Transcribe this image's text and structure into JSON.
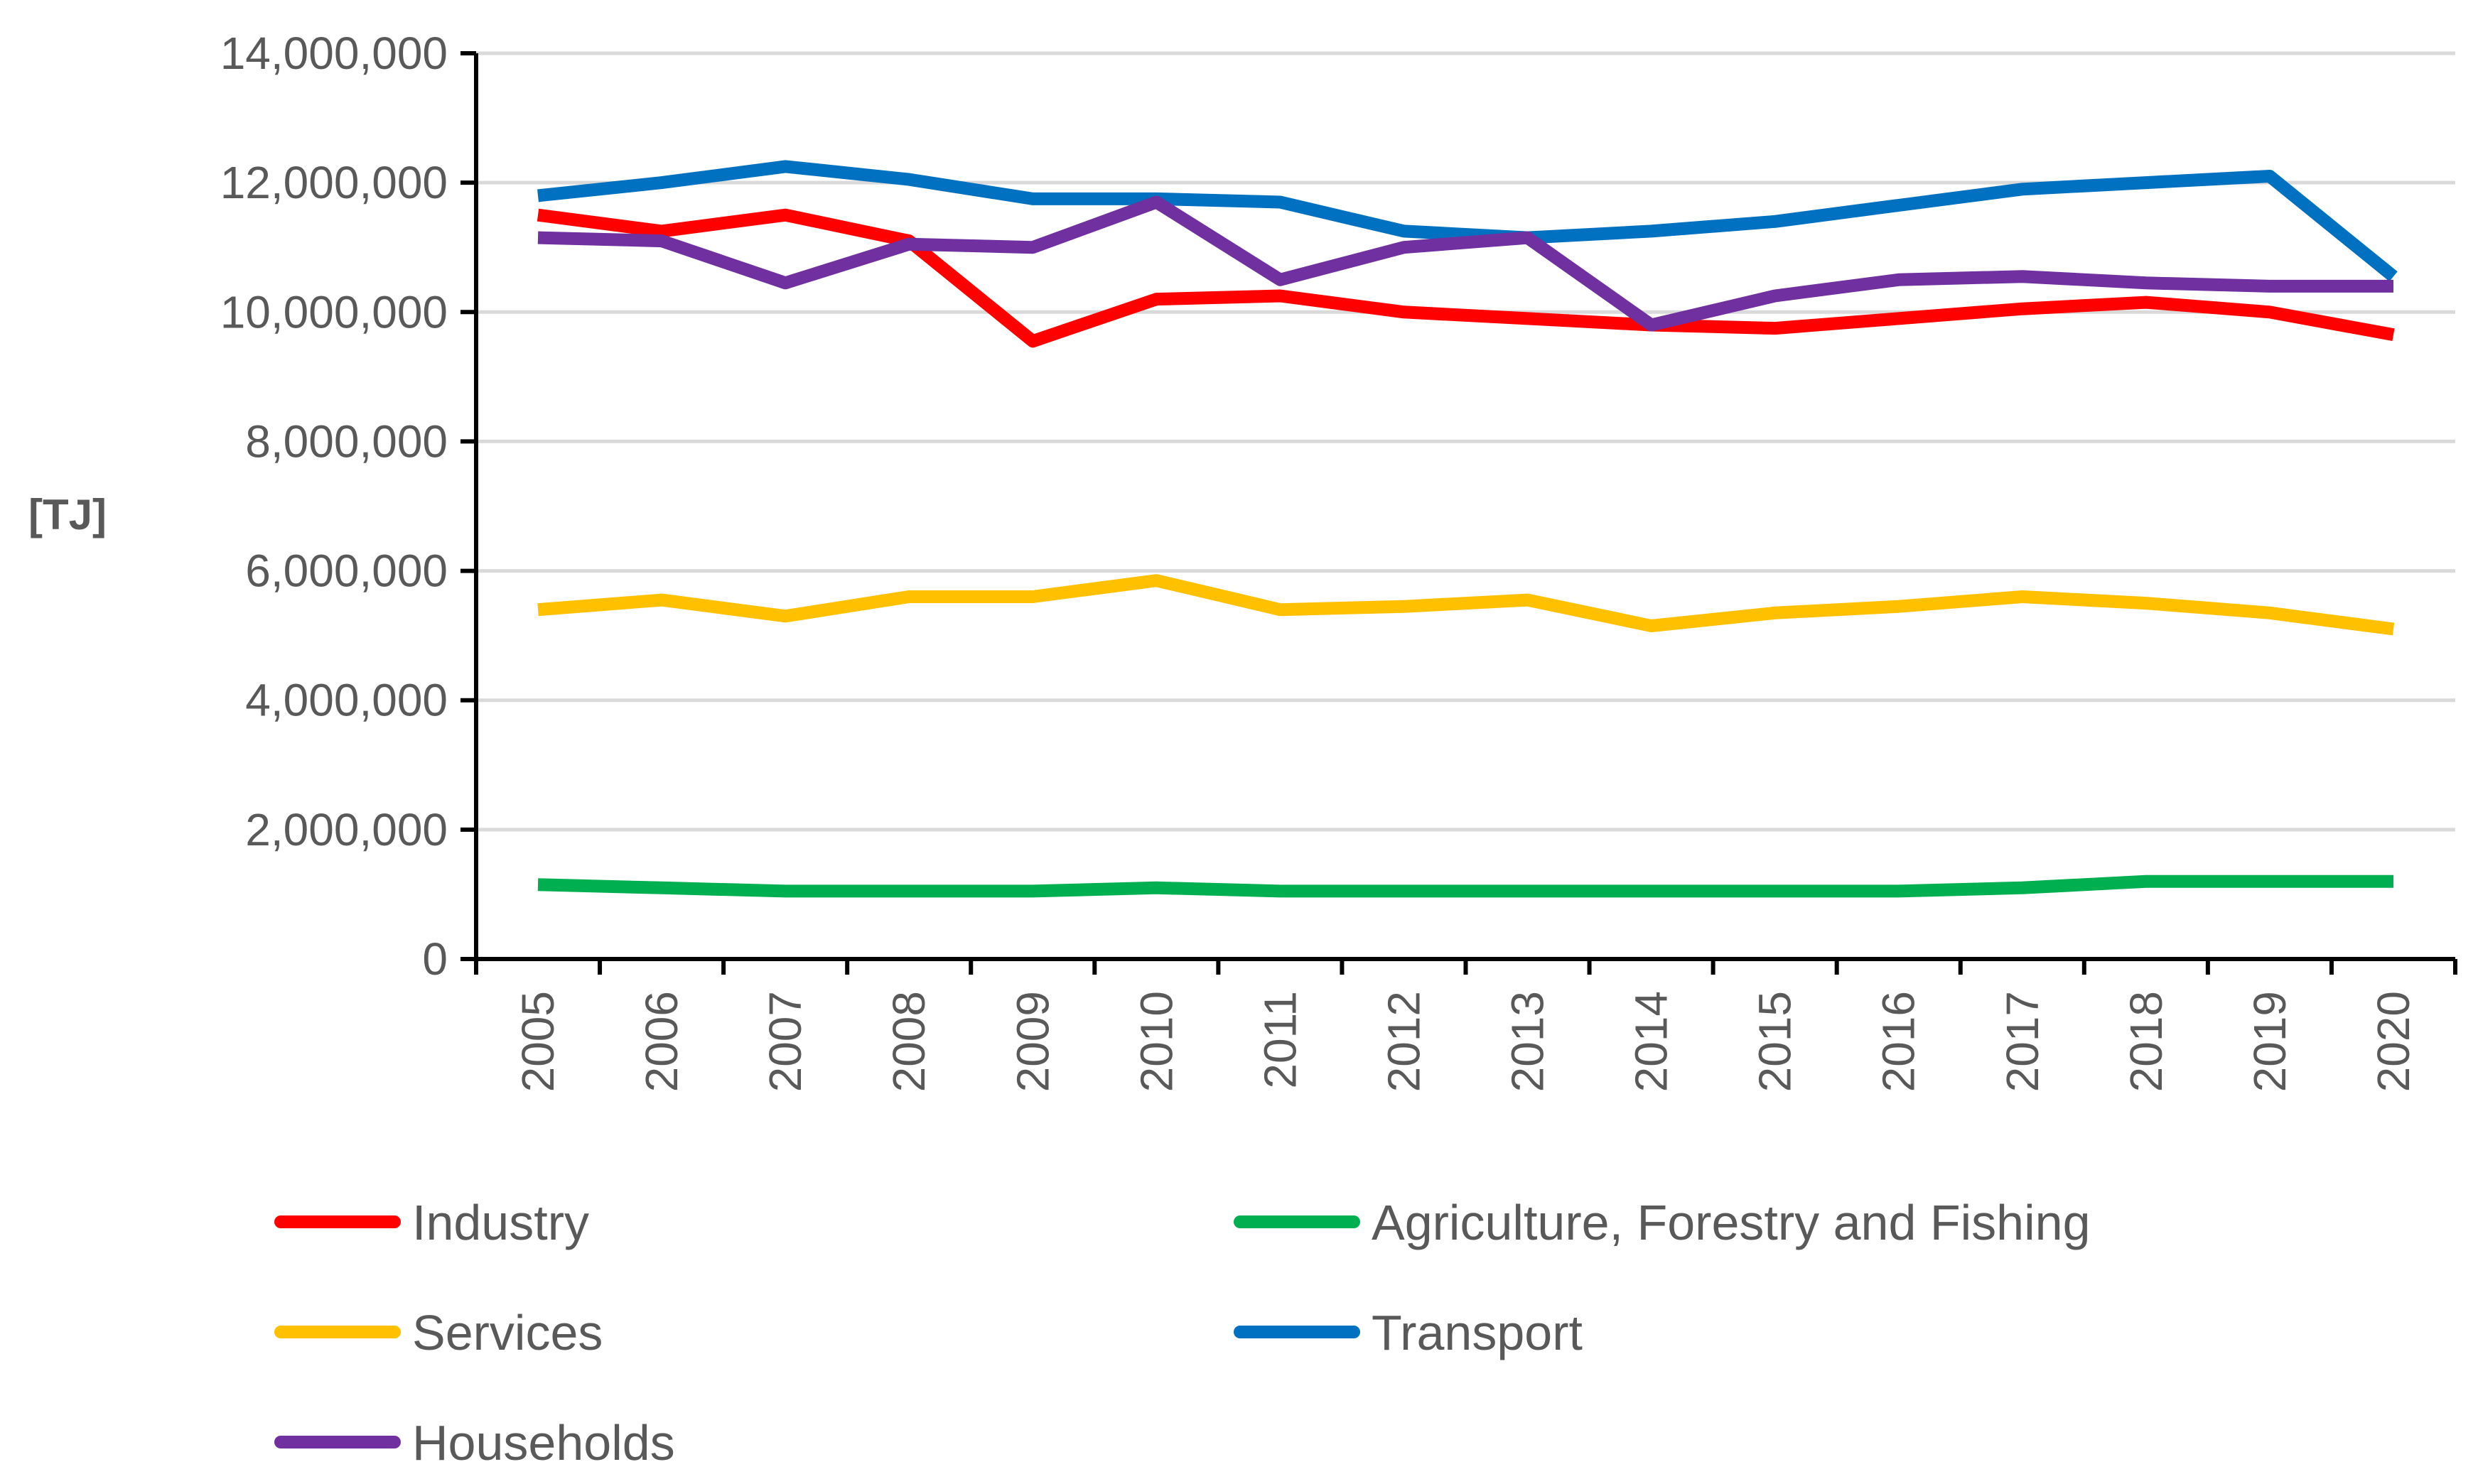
{
  "chart_data": {
    "type": "line",
    "title": "",
    "xlabel": "",
    "ylabel": "[TJ]",
    "ylim": [
      0,
      14000000
    ],
    "yticks": [
      0,
      2000000,
      4000000,
      6000000,
      8000000,
      10000000,
      12000000,
      14000000
    ],
    "ytick_labels": [
      "0",
      "2,000,000",
      "4,000,000",
      "6,000,000",
      "8,000,000",
      "10,000,000",
      "12,000,000",
      "14,000,000"
    ],
    "categories": [
      "2005",
      "2006",
      "2007",
      "2008",
      "2009",
      "2010",
      "2011",
      "2012",
      "2013",
      "2014",
      "2015",
      "2016",
      "2017",
      "2018",
      "2019",
      "2020"
    ],
    "grid": true,
    "legend_position": "bottom",
    "series": [
      {
        "name": "Industry",
        "color": "#FF0000",
        "values": [
          11500000,
          11250000,
          11500000,
          11100000,
          9550000,
          10200000,
          10250000,
          10000000,
          9900000,
          9800000,
          9750000,
          9900000,
          10050000,
          10150000,
          10000000,
          9650000
        ]
      },
      {
        "name": "Agriculture, Forestry and Fishing",
        "color": "#00B050",
        "values": [
          1150000,
          1100000,
          1050000,
          1050000,
          1050000,
          1100000,
          1050000,
          1050000,
          1050000,
          1050000,
          1050000,
          1050000,
          1100000,
          1200000,
          1200000,
          1200000
        ]
      },
      {
        "name": "Services",
        "color": "#FFC000",
        "values": [
          5400000,
          5550000,
          5300000,
          5600000,
          5600000,
          5850000,
          5400000,
          5450000,
          5550000,
          5150000,
          5350000,
          5450000,
          5600000,
          5500000,
          5350000,
          5100000
        ]
      },
      {
        "name": "Transport",
        "color": "#0070C0",
        "values": [
          11800000,
          12000000,
          12250000,
          12050000,
          11750000,
          11750000,
          11700000,
          11250000,
          11150000,
          11250000,
          11400000,
          11650000,
          11900000,
          12000000,
          12100000,
          10550000
        ]
      },
      {
        "name": "Households",
        "color": "#7030A0",
        "values": [
          11150000,
          11100000,
          10450000,
          11050000,
          11000000,
          11700000,
          10500000,
          11000000,
          11150000,
          9800000,
          10250000,
          10500000,
          10550000,
          10450000,
          10400000,
          10400000
        ]
      }
    ]
  }
}
